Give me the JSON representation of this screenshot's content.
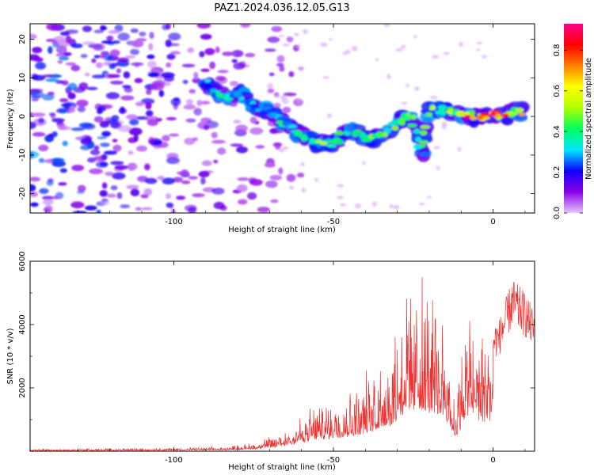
{
  "title": "PAZ1.2024.036.12.05.G13",
  "chart_data": [
    {
      "type": "heatmap",
      "xlabel": "Height of straight line (km)",
      "ylabel": "Frequency (Hz)",
      "xlim": [
        -145,
        13
      ],
      "ylim": [
        -25,
        24
      ],
      "xticks": [
        -100,
        -50,
        0
      ],
      "yticks": [
        -20,
        -10,
        0,
        10,
        20
      ],
      "colorbar": {
        "label": "Normalized spectral amplitude",
        "range": [
          0,
          0.93
        ],
        "ticks": [
          "0.0",
          "0.2",
          "0.4",
          "0.6",
          "0.8"
        ],
        "tick_values": [
          0.0,
          0.2,
          0.4,
          0.6,
          0.8
        ],
        "colors": [
          "#e6c8ff",
          "#8a00e6",
          "#1000ff",
          "#00e8ff",
          "#00ff60",
          "#b0ff00",
          "#ffff00",
          "#ff8000",
          "#ff0000",
          "#ff0090"
        ]
      },
      "ridge": [
        {
          "x": -90,
          "freq": 9,
          "amp": 0.35
        },
        {
          "x": -86,
          "freq": 5,
          "amp": 0.4
        },
        {
          "x": -80,
          "freq": 6,
          "amp": 0.35
        },
        {
          "x": -75,
          "freq": 3,
          "amp": 0.35
        },
        {
          "x": -70,
          "freq": 1,
          "amp": 0.4
        },
        {
          "x": -65,
          "freq": -2,
          "amp": 0.45
        },
        {
          "x": -60,
          "freq": -5,
          "amp": 0.5
        },
        {
          "x": -55,
          "freq": -7,
          "amp": 0.55
        },
        {
          "x": -50,
          "freq": -7,
          "amp": 0.5
        },
        {
          "x": -45,
          "freq": -3,
          "amp": 0.45
        },
        {
          "x": -40,
          "freq": -6,
          "amp": 0.5
        },
        {
          "x": -35,
          "freq": -5,
          "amp": 0.55
        },
        {
          "x": -30,
          "freq": -2,
          "amp": 0.5
        },
        {
          "x": -26,
          "freq": 1,
          "amp": 0.5
        },
        {
          "x": -22,
          "freq": -10,
          "amp": 0.45
        },
        {
          "x": -20,
          "freq": 2,
          "amp": 0.55
        },
        {
          "x": -15,
          "freq": 1.5,
          "amp": 0.6
        },
        {
          "x": -10,
          "freq": 0.5,
          "amp": 0.7
        },
        {
          "x": -5,
          "freq": 0,
          "amp": 0.85
        },
        {
          "x": 0,
          "freq": 0.5,
          "amp": 0.9
        },
        {
          "x": 5,
          "freq": 0.5,
          "amp": 0.75
        },
        {
          "x": 10,
          "freq": 1.5,
          "amp": 0.6
        }
      ]
    },
    {
      "type": "line",
      "xlabel": "Height of straight line (km)",
      "ylabel": "SNR (10 * v/v)",
      "xlim": [
        -145,
        13
      ],
      "ylim": [
        0,
        6000
      ],
      "xticks": [
        -100,
        -50,
        0
      ],
      "yticks": [
        2000,
        4000,
        6000
      ],
      "color": "#ee3030",
      "envelope": [
        {
          "x": -145,
          "snr": 60
        },
        {
          "x": -100,
          "snr": 100
        },
        {
          "x": -85,
          "snr": 130
        },
        {
          "x": -75,
          "snr": 250
        },
        {
          "x": -68,
          "snr": 500
        },
        {
          "x": -62,
          "snr": 900
        },
        {
          "x": -55,
          "snr": 1400
        },
        {
          "x": -45,
          "snr": 1800
        },
        {
          "x": -38,
          "snr": 2400
        },
        {
          "x": -32,
          "snr": 3200
        },
        {
          "x": -27,
          "snr": 4800
        },
        {
          "x": -22,
          "snr": 5000
        },
        {
          "x": -15,
          "snr": 4200
        },
        {
          "x": -12,
          "snr": 1500
        },
        {
          "x": -8,
          "snr": 4400
        },
        {
          "x": -3,
          "snr": 3600
        },
        {
          "x": 2,
          "snr": 4000
        },
        {
          "x": 6,
          "snr": 5200
        },
        {
          "x": 10,
          "snr": 4800
        },
        {
          "x": 13,
          "snr": 4200
        }
      ]
    }
  ]
}
